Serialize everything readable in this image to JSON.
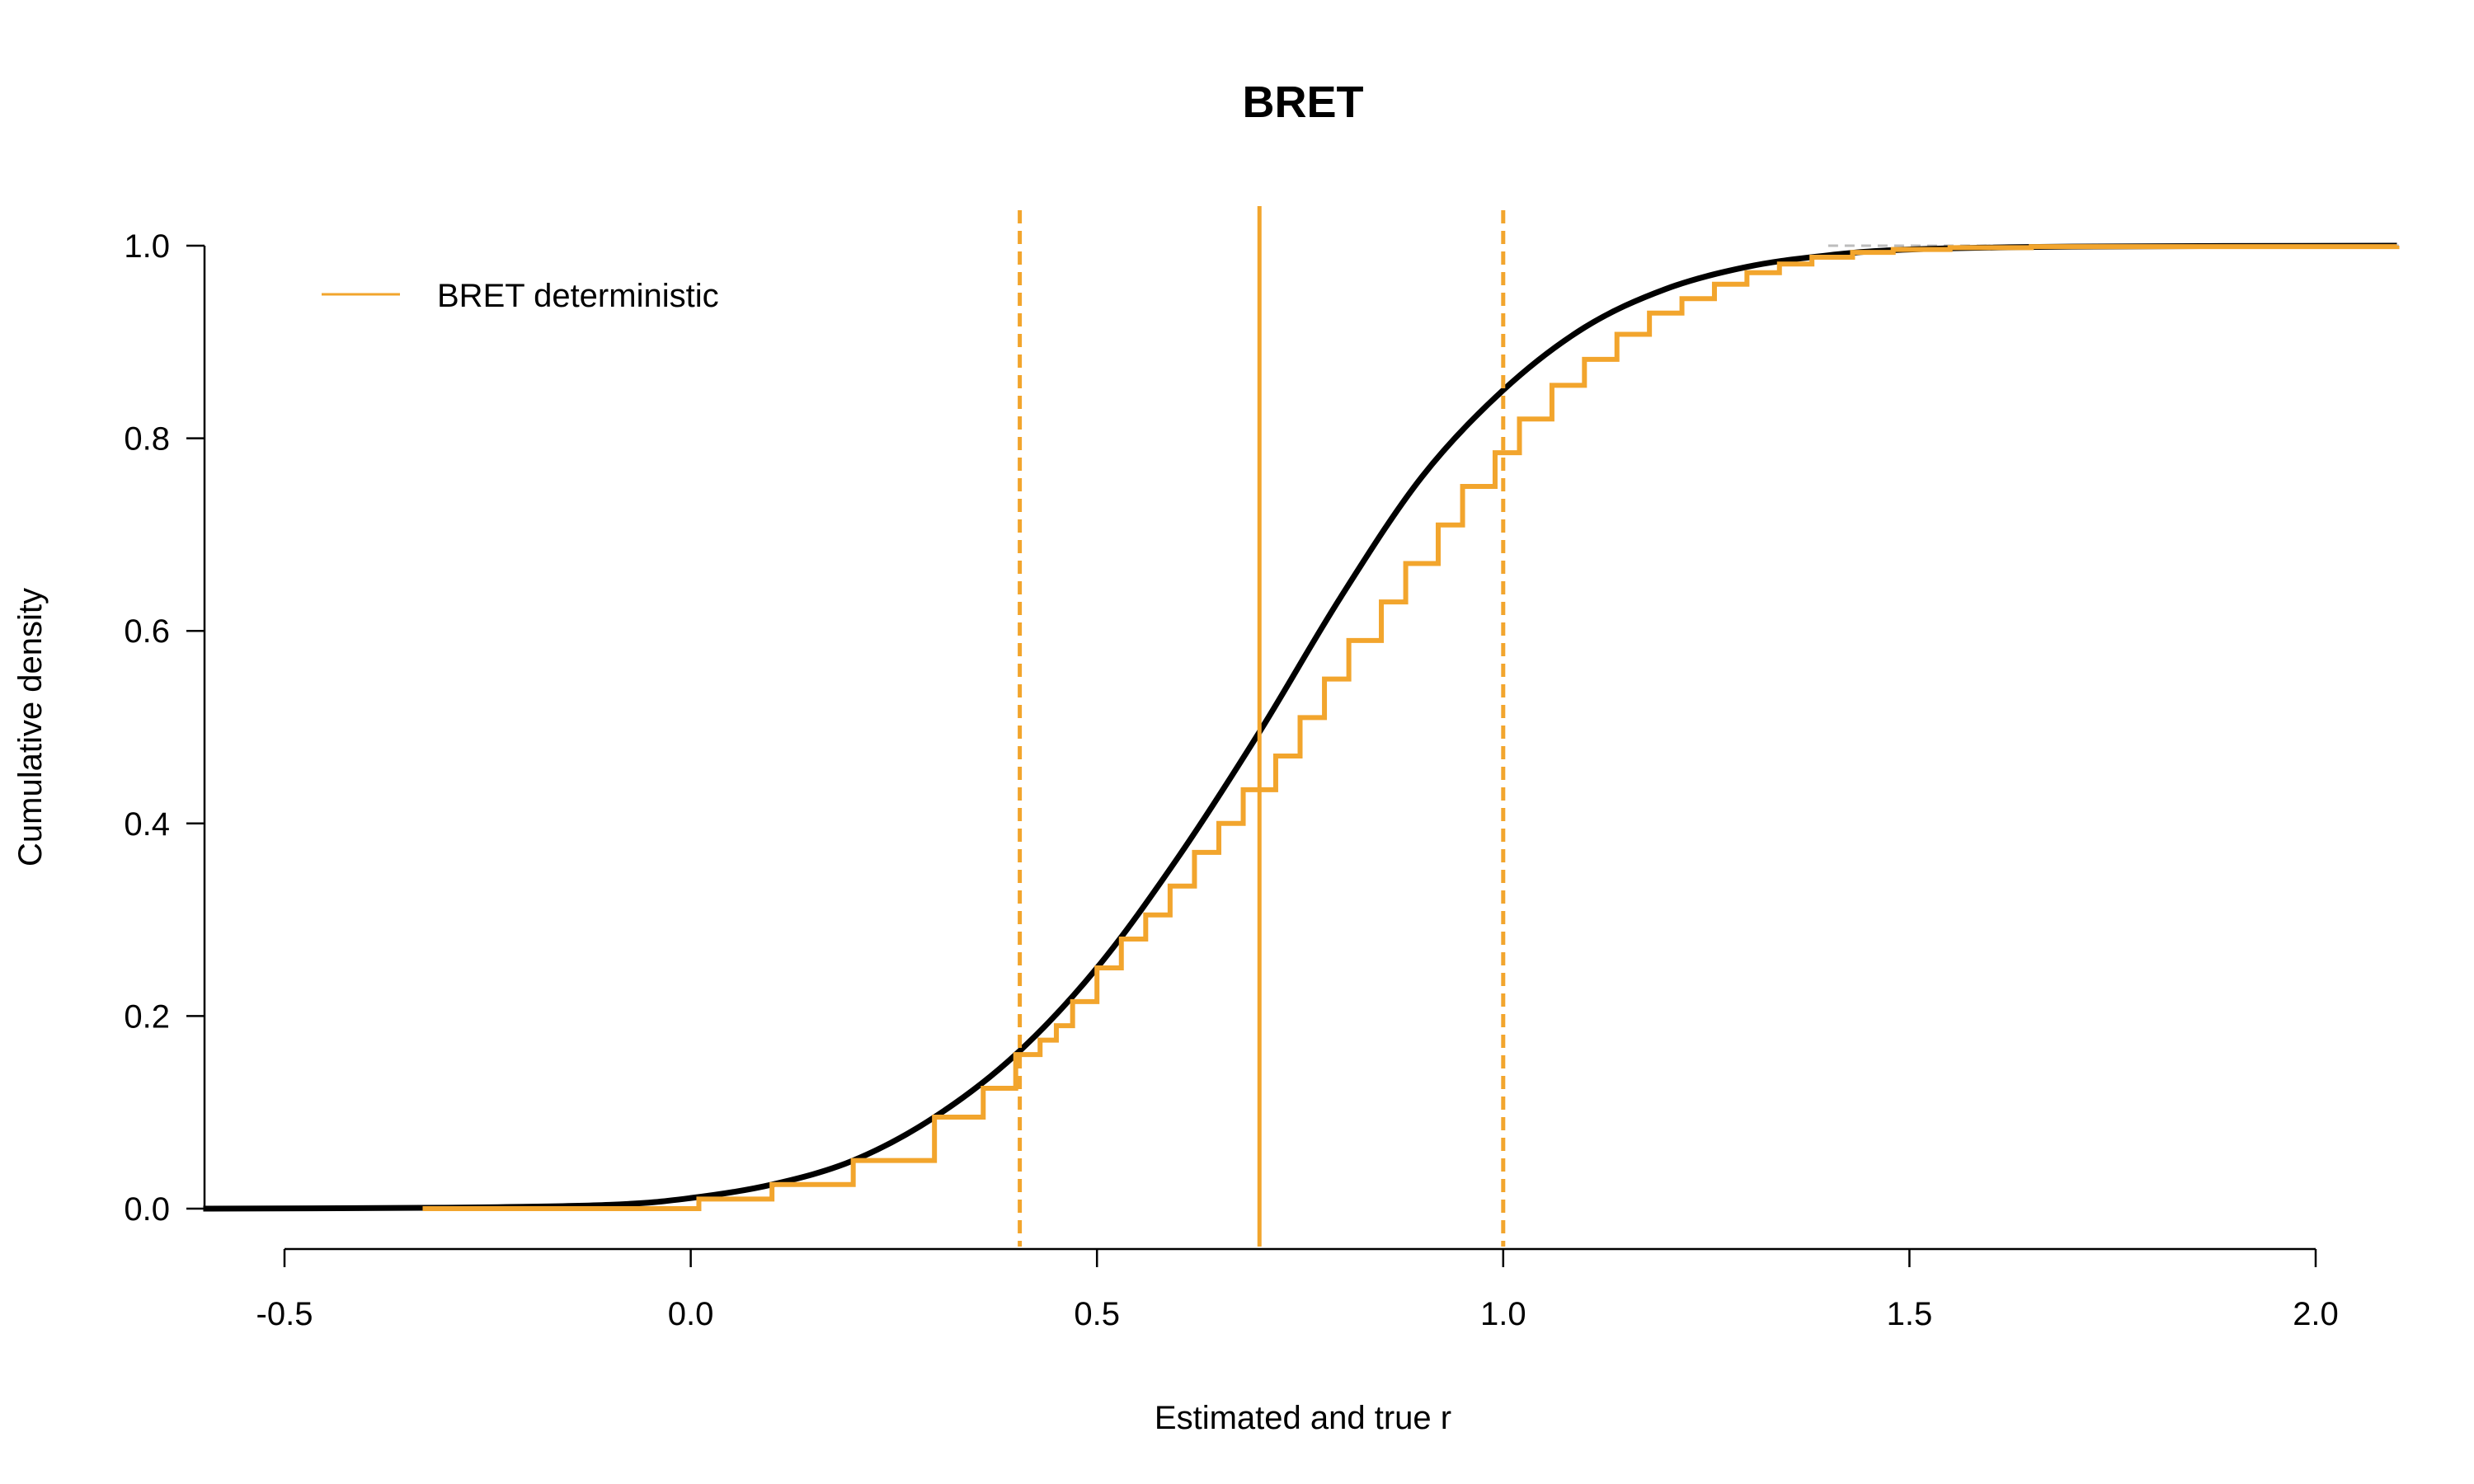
{
  "colors": {
    "orange": "#F2A52D",
    "black": "#000000"
  },
  "chart_data": {
    "type": "line",
    "title": "BRET",
    "xlabel": "Estimated and true r",
    "ylabel": "Cumulative density",
    "xlim": [
      -0.6,
      2.1
    ],
    "ylim": [
      0,
      1
    ],
    "xticks": [
      -0.5,
      0.0,
      0.5,
      1.0,
      1.5,
      2.0
    ],
    "xtick_labels": [
      "-0.5",
      "0.0",
      "0.5",
      "1.0",
      "1.5",
      "2.0"
    ],
    "yticks": [
      0.0,
      0.2,
      0.4,
      0.6,
      0.8,
      1.0
    ],
    "ytick_labels": [
      "0.0",
      "0.2",
      "0.4",
      "0.6",
      "0.8",
      "1.0"
    ],
    "legend": {
      "position": "top-left",
      "entries": [
        {
          "label": "BRET deterministic",
          "color": "#F2A52D"
        }
      ]
    },
    "series": [
      {
        "style": "smooth cumulative curve",
        "color": "#000000",
        "points": [
          [
            -0.6,
            0.0
          ],
          [
            -0.3,
            0.001
          ],
          [
            -0.1,
            0.004
          ],
          [
            0.0,
            0.011
          ],
          [
            0.1,
            0.025
          ],
          [
            0.2,
            0.05
          ],
          [
            0.3,
            0.095
          ],
          [
            0.4,
            0.16
          ],
          [
            0.5,
            0.25
          ],
          [
            0.6,
            0.365
          ],
          [
            0.7,
            0.495
          ],
          [
            0.8,
            0.635
          ],
          [
            0.9,
            0.76
          ],
          [
            1.0,
            0.85
          ],
          [
            1.1,
            0.915
          ],
          [
            1.2,
            0.955
          ],
          [
            1.3,
            0.978
          ],
          [
            1.4,
            0.99
          ],
          [
            1.5,
            0.996
          ],
          [
            1.7,
            0.999
          ],
          [
            2.1,
            1.0
          ]
        ]
      },
      {
        "name": "BRET deterministic",
        "style": "step",
        "color": "#F2A52D",
        "points": [
          [
            -0.33,
            0.0
          ],
          [
            0.01,
            0.0
          ],
          [
            0.01,
            0.01
          ],
          [
            0.1,
            0.025
          ],
          [
            0.2,
            0.05
          ],
          [
            0.3,
            0.095
          ],
          [
            0.36,
            0.125
          ],
          [
            0.4,
            0.16
          ],
          [
            0.43,
            0.175
          ],
          [
            0.45,
            0.19
          ],
          [
            0.47,
            0.215
          ],
          [
            0.5,
            0.25
          ],
          [
            0.53,
            0.28
          ],
          [
            0.56,
            0.305
          ],
          [
            0.59,
            0.335
          ],
          [
            0.62,
            0.37
          ],
          [
            0.65,
            0.4
          ],
          [
            0.68,
            0.435
          ],
          [
            0.72,
            0.47
          ],
          [
            0.75,
            0.51
          ],
          [
            0.78,
            0.55
          ],
          [
            0.81,
            0.59
          ],
          [
            0.85,
            0.63
          ],
          [
            0.88,
            0.67
          ],
          [
            0.92,
            0.71
          ],
          [
            0.95,
            0.75
          ],
          [
            0.99,
            0.785
          ],
          [
            1.02,
            0.82
          ],
          [
            1.06,
            0.855
          ],
          [
            1.1,
            0.882
          ],
          [
            1.14,
            0.908
          ],
          [
            1.18,
            0.93
          ],
          [
            1.22,
            0.945
          ],
          [
            1.26,
            0.96
          ],
          [
            1.3,
            0.972
          ],
          [
            1.34,
            0.981
          ],
          [
            1.38,
            0.988
          ],
          [
            1.43,
            0.993
          ],
          [
            1.48,
            0.996
          ],
          [
            1.55,
            0.998
          ],
          [
            1.65,
            0.999
          ],
          [
            2.1,
            1.0
          ]
        ]
      }
    ],
    "vlines": [
      {
        "x": 0.405,
        "style": "dashed",
        "color": "#F2A52D"
      },
      {
        "x": 0.7,
        "style": "solid",
        "color": "#F2A52D"
      },
      {
        "x": 1.0,
        "style": "dashed",
        "color": "#F2A52D"
      }
    ]
  }
}
